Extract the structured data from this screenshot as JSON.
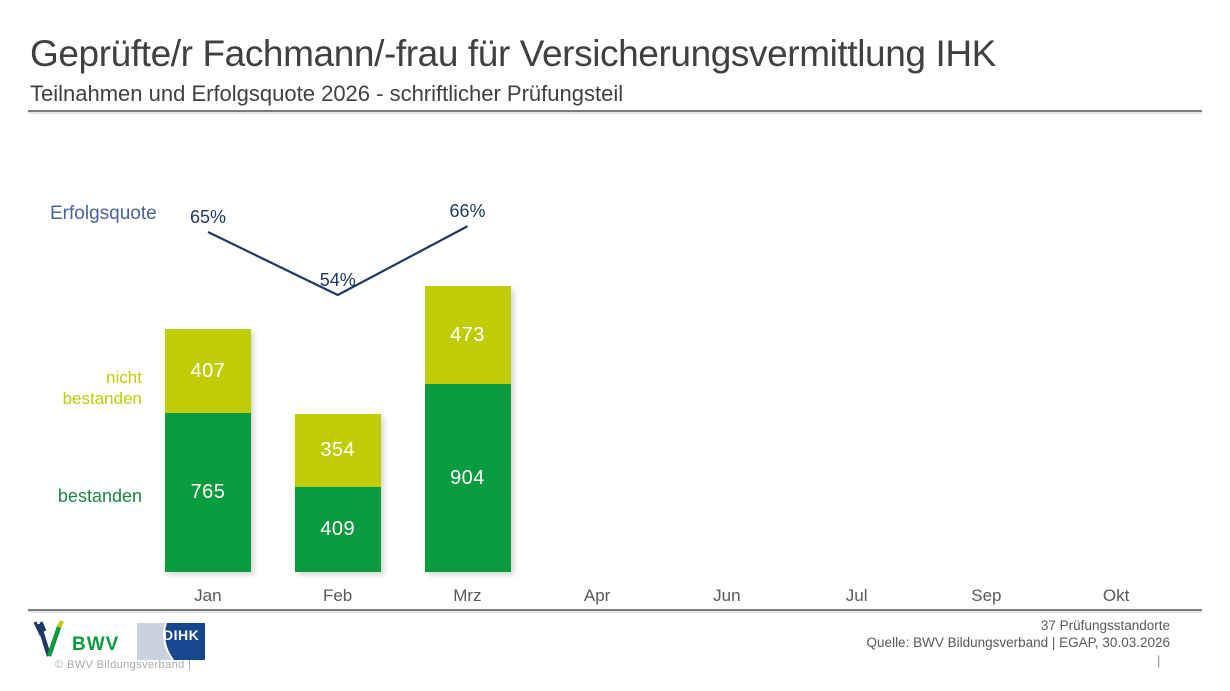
{
  "header": {
    "title": "Geprüfte/r Fachmann/-frau für Versicherungsvermittlung IHK",
    "subtitle": "Teilnahmen und Erfolgsquote 2026 - schriftlicher Prüfungsteil"
  },
  "chart_data": {
    "type": "bar",
    "subtype": "stacked_bars_with_percentage_line",
    "title": "Teilnahmen und Erfolgsquote 2026 - schriftlicher Prüfungsteil",
    "xlabel": "",
    "ylabel": "",
    "grid": false,
    "legend_position": "left-of-bars",
    "categories": [
      "Jan",
      "Feb",
      "Mrz",
      "Apr",
      "Jun",
      "Jul",
      "Sep",
      "Okt"
    ],
    "categories_with_data": [
      "Jan",
      "Feb",
      "Mrz"
    ],
    "series": [
      {
        "name": "bestanden",
        "color": "#0b9b3f",
        "values": [
          765,
          409,
          904
        ]
      },
      {
        "name": "nicht bestanden",
        "color": "#bfcc06",
        "values": [
          407,
          354,
          473
        ]
      }
    ],
    "line": {
      "name": "Erfolgsquote",
      "color": "#1f3864",
      "unit": "%",
      "values": [
        65,
        54,
        66
      ]
    },
    "totals": [
      1172,
      763,
      1377
    ],
    "value_label_color": "#ffffff"
  },
  "footer": {
    "bwv_logo_text": "BWV",
    "dihk_logo_text": "DIHK",
    "copyright": "© BWV Bildungsverband |",
    "locations": "37 Prüfungsstandorte",
    "source": "Quelle: BWV Bildungsverband | EGAP, 30.03.2026",
    "page_separator": "|"
  },
  "colors": {
    "title_text": "#404040",
    "axis_label": "#595959",
    "rule": "#7c7c7c",
    "erfolgsquote_label": "#4a629b",
    "bestanden_label": "#1b8743",
    "nicht_bestanden_label": "#bfcc06",
    "line": "#1f3864",
    "bestanden_bar": "#0b9b3f",
    "nicht_bestanden_bar": "#bfcc06"
  }
}
